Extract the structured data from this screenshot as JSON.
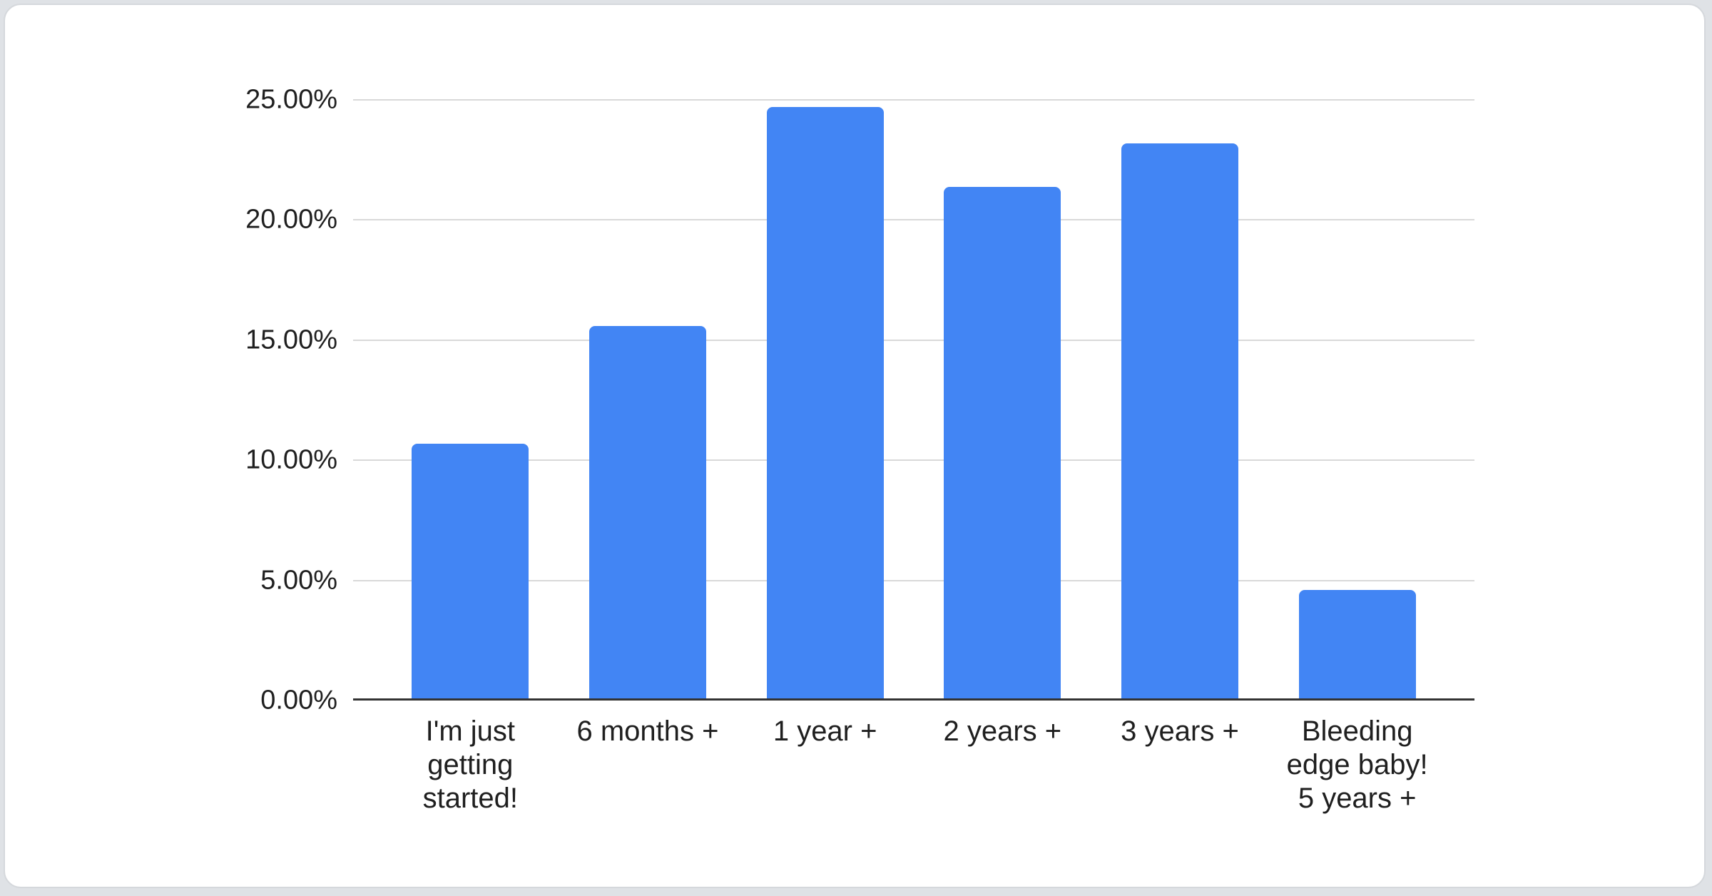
{
  "chart_data": {
    "type": "bar",
    "title": "",
    "xlabel": "",
    "ylabel": "",
    "categories": [
      "I'm just getting started!",
      "6 months +",
      "1 year +",
      "2 years +",
      "3 years +",
      "Bleeding edge baby! 5 years +"
    ],
    "category_lines": [
      [
        "I'm just",
        "getting",
        "started!"
      ],
      [
        "6 months +"
      ],
      [
        "1 year +"
      ],
      [
        "2 years +"
      ],
      [
        "3 years +"
      ],
      [
        "Bleeding",
        "edge baby!",
        "5 years +"
      ]
    ],
    "values": [
      10.6,
      15.5,
      24.6,
      21.3,
      23.1,
      4.5
    ],
    "value_unit": "%",
    "y_ticks": [
      "0.00%",
      "5.00%",
      "10.00%",
      "15.00%",
      "20.00%",
      "25.00%"
    ],
    "y_tick_values": [
      0,
      5,
      10,
      15,
      20,
      25
    ],
    "ylim": [
      0,
      25
    ],
    "grid": true,
    "legend": "none"
  },
  "colors": {
    "bar": "#4285f4",
    "gridline": "#d9d9d9",
    "axis_line": "#333333",
    "label_text": "#1f1f1f",
    "card_background": "#ffffff",
    "card_border": "#d5d8dc",
    "page_background": "#dfe2e6"
  }
}
